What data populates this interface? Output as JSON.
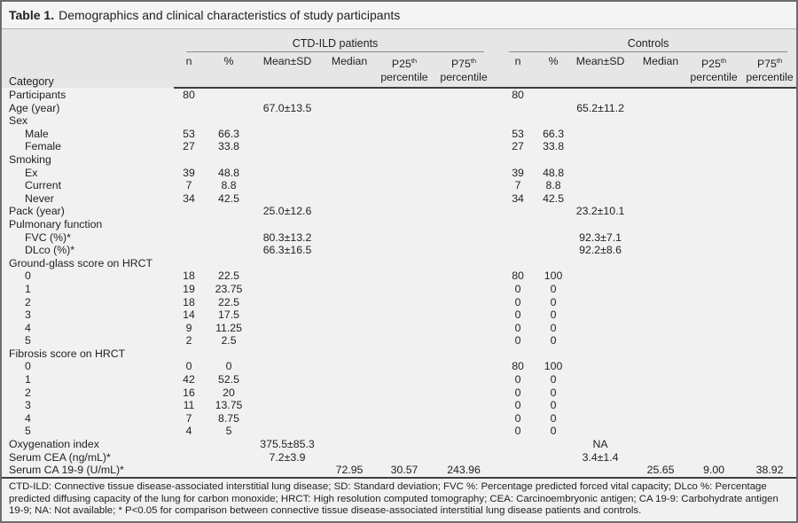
{
  "title": {
    "bold": "Table 1.",
    "text": "Demographics and clinical characteristics of study participants"
  },
  "table": {
    "category_header": "Category",
    "groups": [
      {
        "label": "CTD-ILD patients"
      },
      {
        "label": "Controls"
      }
    ],
    "subheaders": {
      "n": "n",
      "pct": "%",
      "mean": "Mean±SD",
      "median": "Median",
      "p25_base": "P25",
      "p75_base": "P75",
      "sup": "th",
      "percentile": "percentile"
    },
    "rows": [
      {
        "label": "Participants",
        "indent": 0,
        "cells": [
          "80",
          "",
          "",
          "",
          "",
          "",
          "80",
          "",
          "",
          "",
          "",
          ""
        ]
      },
      {
        "label": "Age (year)",
        "indent": 0,
        "cells": [
          "",
          "",
          "67.0±13.5",
          "",
          "",
          "",
          "",
          "",
          "65.2±11.2",
          "",
          "",
          ""
        ]
      },
      {
        "label": "Sex",
        "indent": 0,
        "cells": [
          "",
          "",
          "",
          "",
          "",
          "",
          "",
          "",
          "",
          "",
          "",
          ""
        ]
      },
      {
        "label": "Male",
        "indent": 1,
        "cells": [
          "53",
          "66.3",
          "",
          "",
          "",
          "",
          "53",
          "66.3",
          "",
          "",
          "",
          ""
        ]
      },
      {
        "label": "Female",
        "indent": 1,
        "cells": [
          "27",
          "33.8",
          "",
          "",
          "",
          "",
          "27",
          "33.8",
          "",
          "",
          "",
          ""
        ]
      },
      {
        "label": "Smoking",
        "indent": 0,
        "cells": [
          "",
          "",
          "",
          "",
          "",
          "",
          "",
          "",
          "",
          "",
          "",
          ""
        ]
      },
      {
        "label": "Ex",
        "indent": 1,
        "cells": [
          "39",
          "48.8",
          "",
          "",
          "",
          "",
          "39",
          "48.8",
          "",
          "",
          "",
          ""
        ]
      },
      {
        "label": "Current",
        "indent": 1,
        "cells": [
          "7",
          "8.8",
          "",
          "",
          "",
          "",
          "7",
          "8.8",
          "",
          "",
          "",
          ""
        ]
      },
      {
        "label": "Never",
        "indent": 1,
        "cells": [
          "34",
          "42.5",
          "",
          "",
          "",
          "",
          "34",
          "42.5",
          "",
          "",
          "",
          ""
        ]
      },
      {
        "label": "Pack (year)",
        "indent": 0,
        "cells": [
          "",
          "",
          "25.0±12.6",
          "",
          "",
          "",
          "",
          "",
          "23.2±10.1",
          "",
          "",
          ""
        ]
      },
      {
        "label": "Pulmonary function",
        "indent": 0,
        "cells": [
          "",
          "",
          "",
          "",
          "",
          "",
          "",
          "",
          "",
          "",
          "",
          ""
        ]
      },
      {
        "label": "FVC (%)*",
        "indent": 1,
        "cells": [
          "",
          "",
          "80.3±13.2",
          "",
          "",
          "",
          "",
          "",
          "92.3±7.1",
          "",
          "",
          ""
        ]
      },
      {
        "label": "DLco (%)*",
        "indent": 1,
        "cells": [
          "",
          "",
          "66.3±16.5",
          "",
          "",
          "",
          "",
          "",
          "92.2±8.6",
          "",
          "",
          ""
        ]
      },
      {
        "label": "Ground-glass score on HRCT",
        "indent": 0,
        "cells": [
          "",
          "",
          "",
          "",
          "",
          "",
          "",
          "",
          "",
          "",
          "",
          ""
        ]
      },
      {
        "label": "0",
        "indent": 1,
        "cells": [
          "18",
          "22.5",
          "",
          "",
          "",
          "",
          "80",
          "100",
          "",
          "",
          "",
          ""
        ]
      },
      {
        "label": "1",
        "indent": 1,
        "cells": [
          "19",
          "23.75",
          "",
          "",
          "",
          "",
          "0",
          "0",
          "",
          "",
          "",
          ""
        ]
      },
      {
        "label": "2",
        "indent": 1,
        "cells": [
          "18",
          "22.5",
          "",
          "",
          "",
          "",
          "0",
          "0",
          "",
          "",
          "",
          ""
        ]
      },
      {
        "label": "3",
        "indent": 1,
        "cells": [
          "14",
          "17.5",
          "",
          "",
          "",
          "",
          "0",
          "0",
          "",
          "",
          "",
          ""
        ]
      },
      {
        "label": "4",
        "indent": 1,
        "cells": [
          "9",
          "11.25",
          "",
          "",
          "",
          "",
          "0",
          "0",
          "",
          "",
          "",
          ""
        ]
      },
      {
        "label": "5",
        "indent": 1,
        "cells": [
          "2",
          "2.5",
          "",
          "",
          "",
          "",
          "0",
          "0",
          "",
          "",
          "",
          ""
        ]
      },
      {
        "label": "Fibrosis score on HRCT",
        "indent": 0,
        "cells": [
          "",
          "",
          "",
          "",
          "",
          "",
          "",
          "",
          "",
          "",
          "",
          ""
        ]
      },
      {
        "label": "0",
        "indent": 1,
        "cells": [
          "0",
          "0",
          "",
          "",
          "",
          "",
          "80",
          "100",
          "",
          "",
          "",
          ""
        ]
      },
      {
        "label": "1",
        "indent": 1,
        "cells": [
          "42",
          "52.5",
          "",
          "",
          "",
          "",
          "0",
          "0",
          "",
          "",
          "",
          ""
        ]
      },
      {
        "label": "2",
        "indent": 1,
        "cells": [
          "16",
          "20",
          "",
          "",
          "",
          "",
          "0",
          "0",
          "",
          "",
          "",
          ""
        ]
      },
      {
        "label": "3",
        "indent": 1,
        "cells": [
          "11",
          "13.75",
          "",
          "",
          "",
          "",
          "0",
          "0",
          "",
          "",
          "",
          ""
        ]
      },
      {
        "label": "4",
        "indent": 1,
        "cells": [
          "7",
          "8.75",
          "",
          "",
          "",
          "",
          "0",
          "0",
          "",
          "",
          "",
          ""
        ]
      },
      {
        "label": "5",
        "indent": 1,
        "cells": [
          "4",
          "5",
          "",
          "",
          "",
          "",
          "0",
          "0",
          "",
          "",
          "",
          ""
        ]
      },
      {
        "label": "Oxygenation index",
        "indent": 0,
        "cells": [
          "",
          "",
          "375.5±85.3",
          "",
          "",
          "",
          "",
          "",
          "NA",
          "",
          "",
          ""
        ]
      },
      {
        "label": "Serum CEA (ng/mL)*",
        "indent": 0,
        "cells": [
          "",
          "",
          "7.2±3.9",
          "",
          "",
          "",
          "",
          "",
          "3.4±1.4",
          "",
          "",
          ""
        ]
      },
      {
        "label": "Serum CA 19-9 (U/mL)*",
        "indent": 0,
        "cells": [
          "",
          "",
          "",
          "72.95",
          "30.57",
          "243.96",
          "",
          "",
          "",
          "25.65",
          "9.00",
          "38.92"
        ]
      }
    ]
  },
  "footnote": "CTD-ILD: Connective tissue disease-associated interstitial lung disease; SD: Standard deviation; FVC %: Percentage predicted forced vital capacity; DLco %: Percentage predicted diffusing capacity of the lung for carbon monoxide; HRCT: High resolution computed tomography; CEA: Carcinoembryonic antigen; CA 19-9: Carbohydrate antigen 19-9; NA: Not available; * P<0.05 for comparison between connective tissue disease-associated interstitial lung disease patients and controls.",
  "colors": {
    "outer_border": "#6d6d6d",
    "header_band": "#e5e6e5",
    "body_bg": "#f0f1f0",
    "title_bg": "#f4f4f4",
    "rule_dark": "#3e3e3e",
    "rule_group": "#8c8c8c",
    "text": "#222222"
  }
}
